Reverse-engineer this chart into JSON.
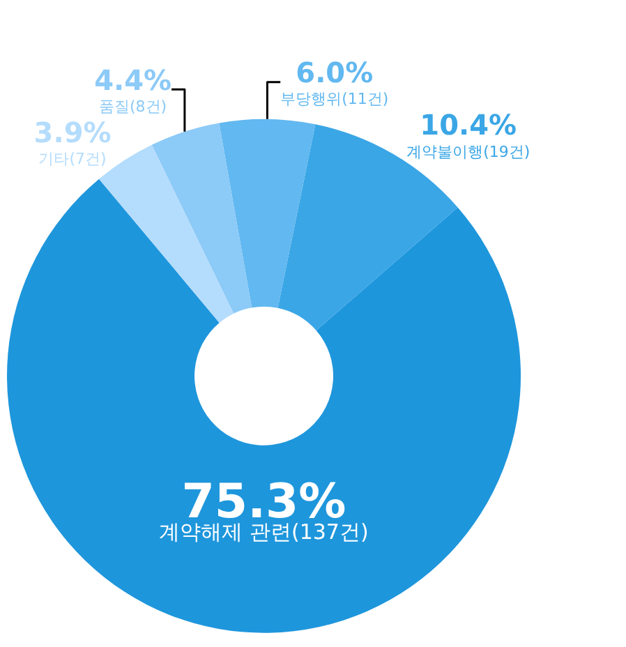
{
  "chart_data": {
    "type": "donut",
    "categories": [
      "계약해제 관련(137건)",
      "계약불이행(19건)",
      "부당행위(11건)",
      "품질(8건)",
      "기타(7건)"
    ],
    "values": [
      75.3,
      10.4,
      6.0,
      4.4,
      3.9
    ],
    "value_labels": [
      "75.3%",
      "10.4%",
      "6.0%",
      "4.4%",
      "3.9%"
    ],
    "colors": [
      "#1e96dc",
      "#3aa6e6",
      "#62b8f0",
      "#8ccaf7",
      "#b4dcfc"
    ],
    "legend": false
  }
}
